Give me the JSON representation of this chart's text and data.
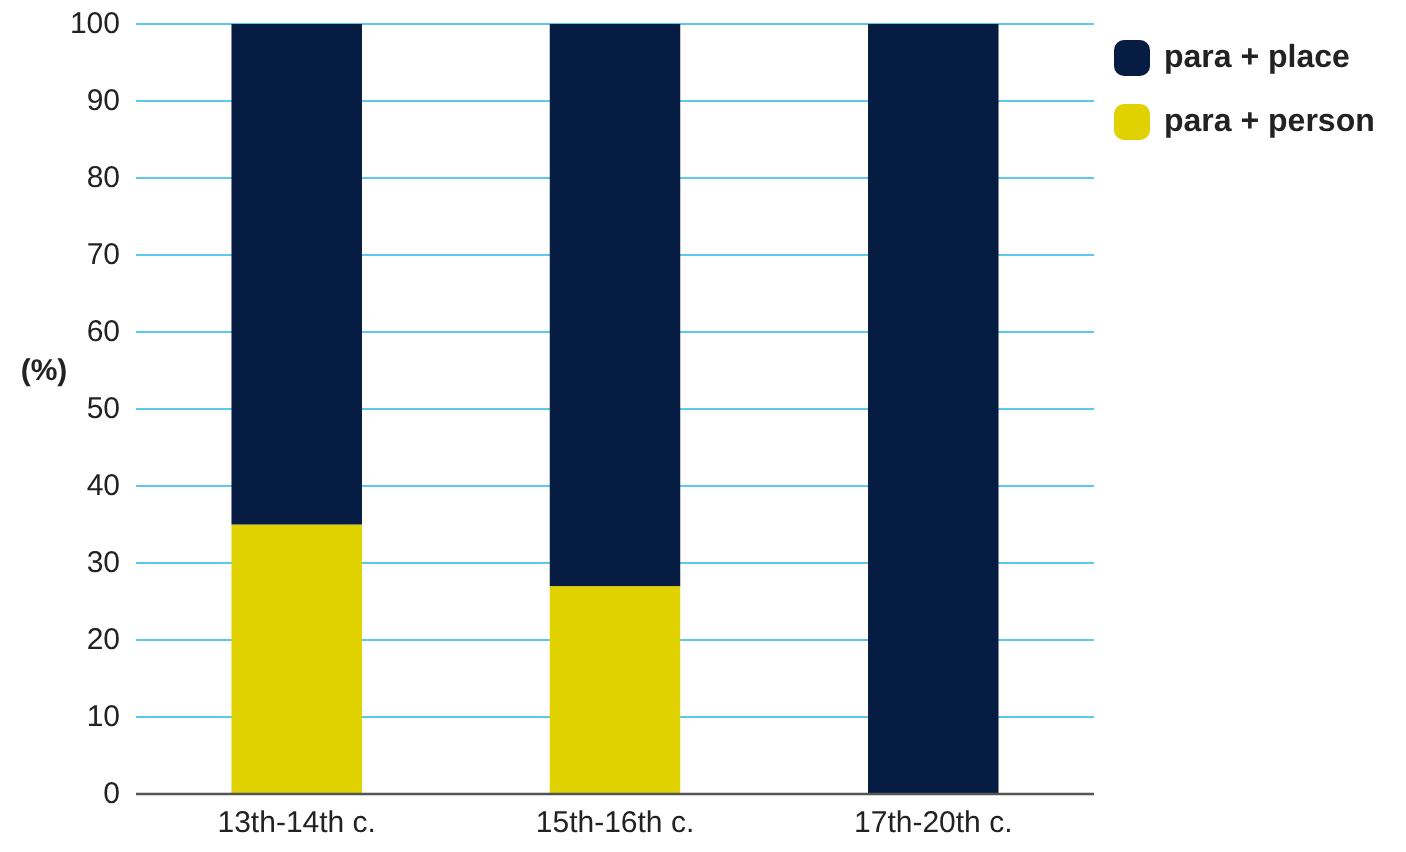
{
  "chart_data": {
    "type": "bar",
    "stacked": true,
    "ylabel": "(%)",
    "categories": [
      "13th-14th c.",
      "15th-16th c.",
      "17th-20th c."
    ],
    "series": [
      {
        "name": "para + person",
        "color": "#e0d200",
        "values": [
          35,
          27,
          0
        ]
      },
      {
        "name": "para + place",
        "color": "#061c42",
        "values": [
          65,
          73,
          100
        ]
      }
    ],
    "ylim": [
      0,
      100
    ],
    "yticks": [
      0,
      10,
      20,
      30,
      40,
      50,
      60,
      70,
      80,
      90,
      100
    ],
    "grid": "y",
    "legend": "top right"
  }
}
